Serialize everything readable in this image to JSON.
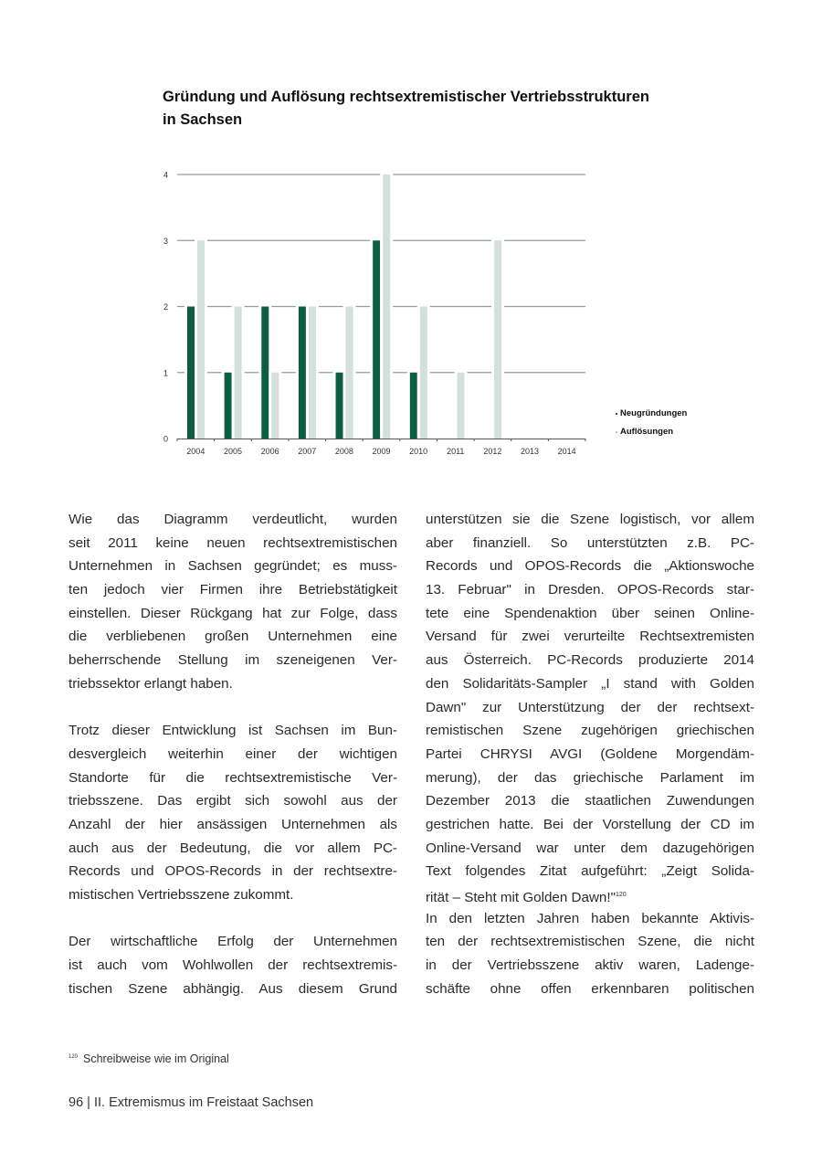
{
  "chart_data": {
    "type": "bar",
    "title": "Gründung und Auflösung rechtsextremistischer Vertriebsstrukturen in Sachsen",
    "title_lines": [
      "Gründung und Auflösung rechtsextremistischer Vertriebsstrukturen",
      "in Sachsen"
    ],
    "categories": [
      "2004",
      "2005",
      "2006",
      "2007",
      "2008",
      "2009",
      "2010",
      "2011",
      "2012",
      "2013",
      "2014"
    ],
    "series": [
      {
        "name": "Neugründungen",
        "color": "#0b5e43",
        "values": [
          2,
          1,
          2,
          2,
          1,
          3,
          1,
          0,
          0,
          0,
          0
        ]
      },
      {
        "name": "Auflösungen",
        "color": "#d3e0db",
        "values": [
          3,
          2,
          1,
          2,
          2,
          4,
          2,
          1,
          3,
          0,
          0
        ]
      }
    ],
    "ylim": [
      0,
      4
    ],
    "yticks": [
      "0",
      "1",
      "2",
      "3",
      "4"
    ],
    "grid": true,
    "legend": "right-bottom",
    "xlabel": "",
    "ylabel": ""
  },
  "body": {
    "left": [
      {
        "t": "Wie das Diagramm verdeutlicht, wurden"
      },
      {
        "t": "seit 2011 keine neuen rechtsextremistischen"
      },
      {
        "t": "Unternehmen in Sachsen gegründet; es muss-"
      },
      {
        "t": "ten jedoch vier Firmen ihre Betriebstätigkeit"
      },
      {
        "t": "einstellen. Dieser Rückgang hat zur Folge, dass"
      },
      {
        "t": "die verbliebenen großen Unternehmen eine"
      },
      {
        "t": "beherrschende Stellung im szeneigenen Ver-"
      },
      {
        "t": "triebssektor erlangt haben.",
        "last": true
      },
      {
        "gap": true
      },
      {
        "t": "Trotz dieser Entwicklung ist Sachsen im Bun-"
      },
      {
        "t": "desvergleich weiterhin einer der wichtigen"
      },
      {
        "t": "Standorte für die rechtsextremistische Ver-"
      },
      {
        "t": "triebsszene. Das ergibt sich sowohl aus der"
      },
      {
        "t": "Anzahl der hier ansässigen Unternehmen als"
      },
      {
        "t": "auch aus der Bedeutung, die vor allem PC-"
      },
      {
        "t": "Records und OPOS-Records in der rechtsextre-"
      },
      {
        "t": "mistischen Vertriebsszene zukommt.",
        "last": true
      },
      {
        "gap": true
      },
      {
        "t": "Der wirtschaftliche Erfolg der Unternehmen"
      },
      {
        "t": "ist auch vom Wohlwollen der rechtsextremis-"
      },
      {
        "t": "tischen Szene abhängig. Aus diesem Grund"
      }
    ],
    "right": [
      {
        "t": "unterstützen sie die Szene logistisch, vor allem"
      },
      {
        "t": "aber finanziell. So unterstützten z.B. PC-"
      },
      {
        "t": "Records und OPOS-Records die „Aktionswoche"
      },
      {
        "t": "13. Februar\" in Dresden. OPOS-Records star-"
      },
      {
        "t": "tete eine Spendenaktion über seinen Online-"
      },
      {
        "t": "Versand für zwei verurteilte Rechtsextremisten"
      },
      {
        "t": "aus Österreich. PC-Records produzierte 2014"
      },
      {
        "t": "den Solidaritäts-Sampler „I stand with Golden"
      },
      {
        "t": "Dawn\" zur Unterstützung der der rechtsext-"
      },
      {
        "t": "remistischen Szene zugehörigen griechischen"
      },
      {
        "t": "Partei CHRYSI AVGI (Goldene Morgendäm-"
      },
      {
        "t": "merung), der das griechische Parlament im"
      },
      {
        "t": "Dezember 2013 die staatlichen Zuwendungen"
      },
      {
        "t": "gestrichen hatte. Bei der Vorstellung der CD im"
      },
      {
        "t": "Online-Versand war unter dem dazugehörigen"
      },
      {
        "t": "Text folgendes Zitat aufgeführt: „Zeigt Solida-"
      },
      {
        "t": "rität – Steht mit Golden Dawn!\"",
        "sup": "120",
        "last": true
      },
      {
        "t": "In den letzten Jahren haben bekannte Aktivis-"
      },
      {
        "t": "ten der rechtsextremistischen Szene, die nicht"
      },
      {
        "t": "in der Vertriebsszene aktiv waren, Ladenge-"
      },
      {
        "t": "schäfte ohne offen erkennbaren politischen"
      }
    ]
  },
  "footnote": {
    "number": "120",
    "text": "Schreibweise wie im Original"
  },
  "footer": {
    "text": "96 | II. Extremismus im Freistaat Sachsen"
  }
}
